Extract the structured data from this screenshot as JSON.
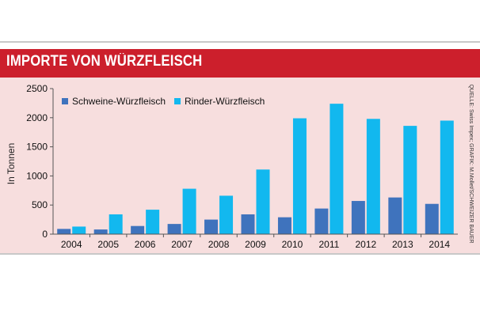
{
  "header": {
    "title": "IMPORTE VON WÜRZFLEISCH"
  },
  "source": "QUELLE: Swiss Impex; GRAFIK: M.Mollet/SCHWEIZER BAUER",
  "colors": {
    "titlebar": "#cc1f2c",
    "panel": "#f7dede",
    "series1": "#3f73bd",
    "series2": "#12b8ef"
  },
  "chart_data": {
    "type": "bar",
    "title": "",
    "ylabel": "In Tonnen",
    "xlabel": "",
    "categories": [
      "2004",
      "2005",
      "2006",
      "2007",
      "2008",
      "2009",
      "2010",
      "2011",
      "2012",
      "2013",
      "2014"
    ],
    "series": [
      {
        "name": "Schweine-Würzfleisch",
        "values": [
          90,
          80,
          140,
          175,
          250,
          340,
          290,
          440,
          570,
          630,
          520
        ]
      },
      {
        "name": "Rinder-Würzfleisch",
        "values": [
          130,
          340,
          420,
          780,
          660,
          1110,
          1990,
          2240,
          1980,
          1860,
          1950
        ]
      }
    ],
    "ylim": [
      0,
      2500
    ],
    "yticks": [
      0,
      500,
      1000,
      1500,
      2000,
      2500
    ],
    "grid": false,
    "legend": "top-left"
  }
}
